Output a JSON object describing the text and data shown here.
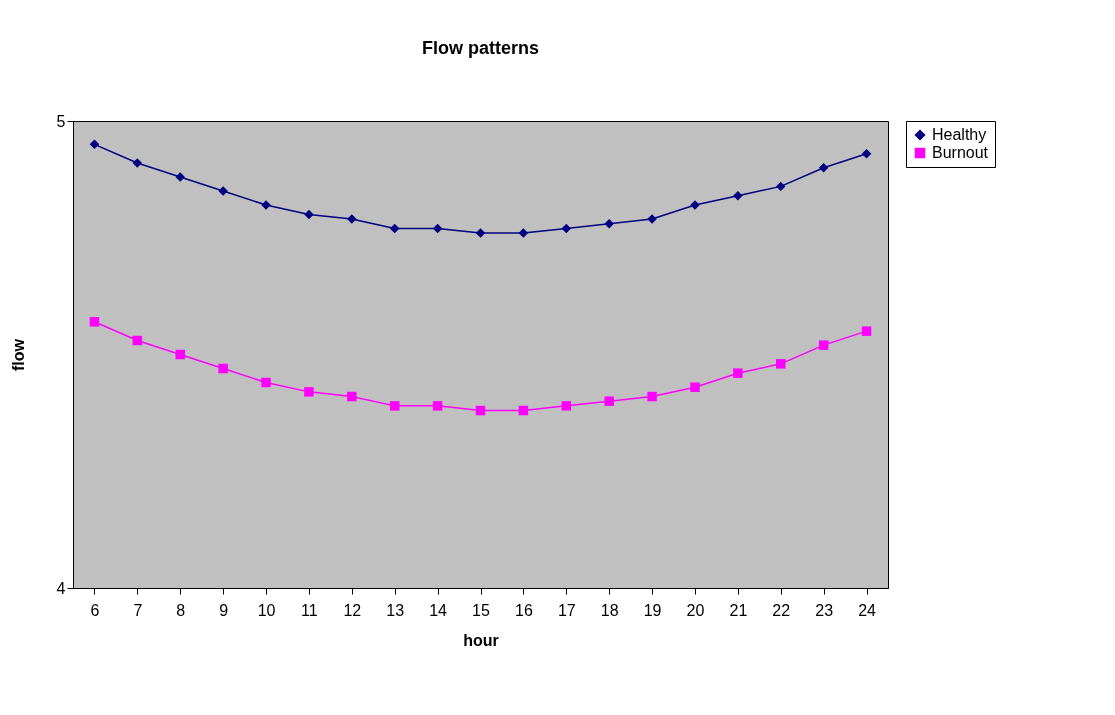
{
  "chart_data": {
    "type": "line",
    "title": "Flow patterns",
    "xlabel": "hour",
    "ylabel": "flow",
    "categories": [
      "6",
      "7",
      "8",
      "9",
      "10",
      "11",
      "12",
      "13",
      "14",
      "15",
      "16",
      "17",
      "18",
      "19",
      "20",
      "21",
      "22",
      "23",
      "24"
    ],
    "ylim": [
      4,
      5
    ],
    "yticks": [
      4,
      5
    ],
    "grid": false,
    "legend": "right",
    "line_style": "solid",
    "series": [
      {
        "name": "Healthy",
        "color": "#000080",
        "marker": "diamond",
        "values": [
          4.95,
          4.91,
          4.88,
          4.85,
          4.82,
          4.8,
          4.79,
          4.77,
          4.77,
          4.76,
          4.76,
          4.77,
          4.78,
          4.79,
          4.82,
          4.84,
          4.86,
          4.9,
          4.93
        ]
      },
      {
        "name": "Burnout",
        "color": "#ff00ff",
        "marker": "square",
        "values": [
          4.57,
          4.53,
          4.5,
          4.47,
          4.44,
          4.42,
          4.41,
          4.39,
          4.39,
          4.38,
          4.38,
          4.39,
          4.4,
          4.41,
          4.43,
          4.46,
          4.48,
          4.52,
          4.55
        ]
      }
    ]
  }
}
